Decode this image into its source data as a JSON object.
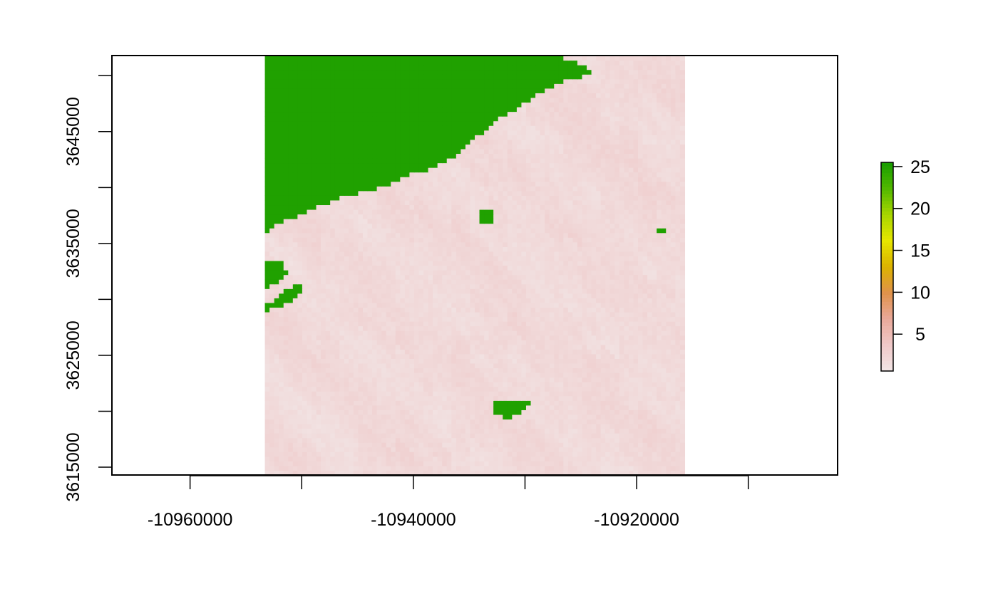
{
  "chart_data": {
    "type": "heatmap",
    "title": "",
    "xlabel": "",
    "ylabel": "",
    "xlim": [
      -10967000,
      -10902000
    ],
    "ylim": [
      3614300,
      3651800
    ],
    "raster_extent": {
      "xmin": -10953300,
      "xmax": -10915700,
      "ymin": 3614300,
      "ymax": 3651800
    },
    "x_ticks": [
      {
        "value": -10960000,
        "label": "-10960000"
      },
      {
        "value": -10950000,
        "label": ""
      },
      {
        "value": -10940000,
        "label": "-10940000"
      },
      {
        "value": -10930000,
        "label": ""
      },
      {
        "value": -10920000,
        "label": "-10920000"
      },
      {
        "value": -10910000,
        "label": ""
      }
    ],
    "y_ticks": [
      {
        "value": 3615000,
        "label": "3615000"
      },
      {
        "value": 3620000,
        "label": ""
      },
      {
        "value": 3625000,
        "label": "3625000"
      },
      {
        "value": 3630000,
        "label": ""
      },
      {
        "value": 3635000,
        "label": "3635000"
      },
      {
        "value": 3640000,
        "label": ""
      },
      {
        "value": 3645000,
        "label": "3645000"
      },
      {
        "value": 3650000,
        "label": ""
      }
    ],
    "legend": {
      "position": "right",
      "range": [
        0.6,
        25.5
      ],
      "ticks": [
        {
          "value": 5,
          "label": "5"
        },
        {
          "value": 10,
          "label": "10"
        },
        {
          "value": 15,
          "label": "15"
        },
        {
          "value": 20,
          "label": "20"
        },
        {
          "value": 25,
          "label": "25"
        }
      ],
      "colors": [
        "#f2e6e6",
        "#efc9c9",
        "#e9a99a",
        "#e0924b",
        "#dcb200",
        "#e6e600",
        "#a8d600",
        "#52b800",
        "#179d00"
      ]
    },
    "high_value": 25,
    "low_value_range": [
      1,
      3
    ],
    "regions": {
      "high_main": [
        [
          -10953300,
          3651800
        ],
        [
          -10941000,
          3651800
        ],
        [
          -10929000,
          3651800
        ],
        [
          -10925500,
          3651500
        ],
        [
          -10924000,
          3650200
        ],
        [
          -10927000,
          3649400
        ],
        [
          -10930000,
          3647600
        ],
        [
          -10933000,
          3645700
        ],
        [
          -10935500,
          3643400
        ],
        [
          -10938000,
          3641800
        ],
        [
          -10940000,
          3641300
        ],
        [
          -10942300,
          3640300
        ],
        [
          -10944000,
          3639700
        ],
        [
          -10946800,
          3639000
        ],
        [
          -10948800,
          3638200
        ],
        [
          -10950800,
          3637300
        ],
        [
          -10952300,
          3636800
        ],
        [
          -10953300,
          3636000
        ]
      ],
      "high_patches": [
        [
          [
            -10953300,
            3633500
          ],
          [
            -10951800,
            3633500
          ],
          [
            -10951300,
            3632300
          ],
          [
            -10952300,
            3631400
          ],
          [
            -10953300,
            3631000
          ]
        ],
        [
          [
            -10953300,
            3629400
          ],
          [
            -10952200,
            3630300
          ],
          [
            -10950500,
            3631400
          ],
          [
            -10949800,
            3631000
          ],
          [
            -10950300,
            3630200
          ],
          [
            -10953300,
            3628800
          ]
        ],
        [
          [
            -10932900,
            3620900
          ],
          [
            -10929400,
            3620900
          ],
          [
            -10930400,
            3619900
          ],
          [
            -10931400,
            3619300
          ],
          [
            -10932900,
            3619900
          ]
        ],
        [
          [
            -10933900,
            3637900
          ],
          [
            -10932900,
            3637900
          ],
          [
            -10932900,
            3637000
          ],
          [
            -10933900,
            3637000
          ]
        ],
        [
          [
            -10918000,
            3636500
          ],
          [
            -10917200,
            3636500
          ],
          [
            -10917200,
            3635800
          ],
          [
            -10918000,
            3635800
          ]
        ],
        [
          [
            -10943000,
            3648500
          ],
          [
            -10942200,
            3648500
          ],
          [
            -10942200,
            3647900
          ],
          [
            -10943000,
            3647900
          ]
        ]
      ]
    }
  }
}
